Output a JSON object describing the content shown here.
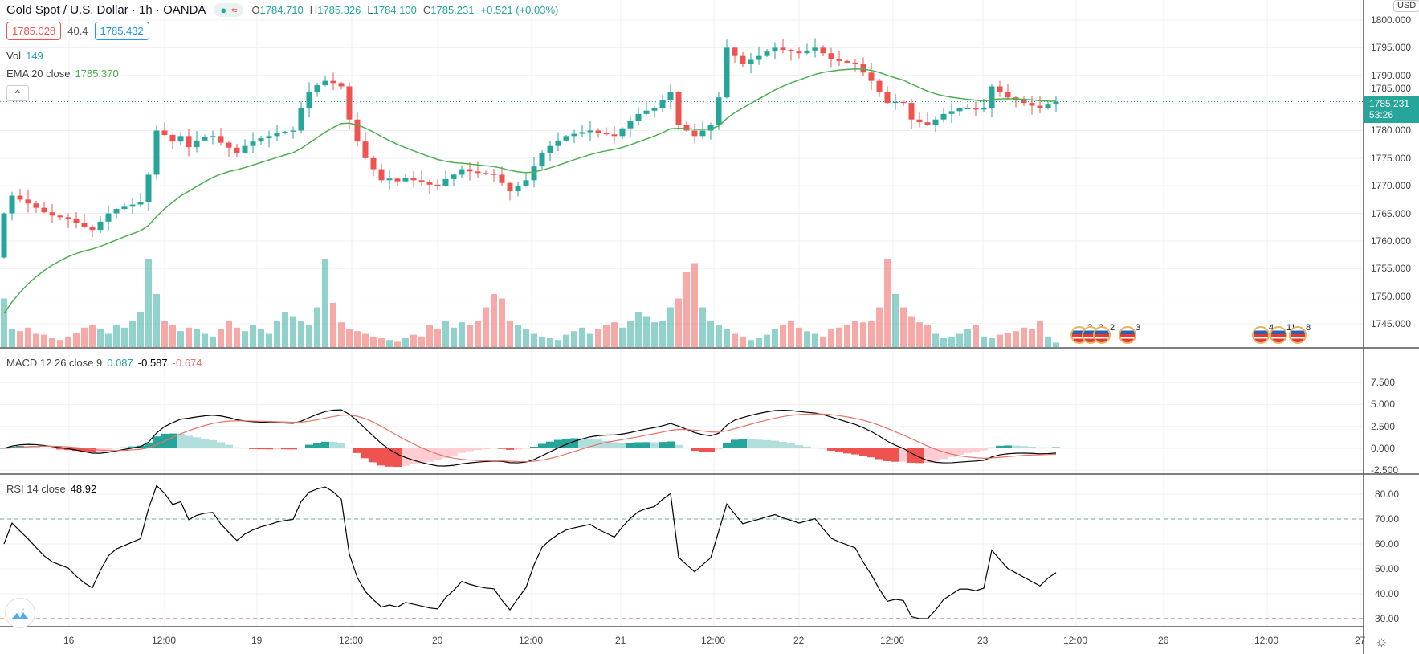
{
  "header": {
    "title": "Gold Spot / U.S. Dollar · 1h · OANDA",
    "status_dot": "●",
    "status_wave": "≈",
    "open_label": "O",
    "open": "1784.710",
    "high_label": "H",
    "high": "1785.326",
    "low_label": "L",
    "low": "1784.100",
    "close_label": "C",
    "close": "1785.231",
    "change": "+0.521 (+0.03%)"
  },
  "trade": {
    "sell": "1785.028",
    "spread": "40.4",
    "buy": "1785.432"
  },
  "legends": {
    "vol_label": "Vol",
    "vol_value": "149",
    "ema_label": "EMA 20 close",
    "ema_value": "1785.370",
    "macd_label": "MACD 12 26 close 9",
    "macd_hist": "0.087",
    "macd_line": "-0.587",
    "macd_signal": "-0.674",
    "rsi_label": "RSI 14 close",
    "rsi_value": "48.92",
    "collapse": "^"
  },
  "price_axis": {
    "currency": "USD",
    "labels": [
      "1800.000",
      "1795.000",
      "1790.000",
      "1785.000",
      "1780.000",
      "1775.000",
      "1770.000",
      "1765.000",
      "1760.000",
      "1755.000",
      "1750.000",
      "1745.000"
    ],
    "current_price": "1785.231",
    "countdown": "53:26"
  },
  "macd_axis": {
    "labels": [
      "7.500",
      "5.000",
      "2.500",
      "0.000",
      "-2.500"
    ]
  },
  "rsi_axis": {
    "labels": [
      "80.00",
      "70.00",
      "60.00",
      "50.00",
      "40.00",
      "30.00"
    ]
  },
  "time_axis": {
    "labels": [
      "16",
      "12:00",
      "19",
      "12:00",
      "20",
      "12:00",
      "21",
      "12:00",
      "22",
      "12:00",
      "23",
      "12:00",
      "26",
      "12:00",
      "27"
    ]
  },
  "events": [
    {
      "label": "2"
    },
    {
      "label": "3"
    },
    {
      "label": "2"
    },
    {
      "label": "3"
    },
    {
      "label": "4"
    },
    {
      "label": "11"
    },
    {
      "label": "8"
    }
  ],
  "colors": {
    "up": "#26a69a",
    "down": "#ef5350",
    "ema": "#4caf50",
    "macd": "#000000",
    "signal": "#e57368",
    "rsi": "#000000"
  },
  "chart_data": {
    "type": "candlestick",
    "timeframe": "1h",
    "closes": [
      1765.0,
      1768.2,
      1767.5,
      1766.8,
      1766.0,
      1765.2,
      1764.6,
      1764.3,
      1764.0,
      1763.2,
      1762.5,
      1762.0,
      1763.5,
      1765.0,
      1765.8,
      1766.2,
      1766.6,
      1767.0,
      1772.0,
      1780.0,
      1779.2,
      1778.0,
      1779.0,
      1777.0,
      1778.2,
      1778.8,
      1779.0,
      1777.8,
      1776.9,
      1776.0,
      1777.2,
      1778.0,
      1778.6,
      1779.0,
      1779.5,
      1779.8,
      1780.0,
      1784.0,
      1787.0,
      1788.2,
      1789.0,
      1788.6,
      1788.0,
      1782.0,
      1778.0,
      1775.0,
      1773.0,
      1771.0,
      1771.3,
      1770.8,
      1771.4,
      1771.0,
      1770.6,
      1770.2,
      1770.0,
      1771.2,
      1772.0,
      1773.0,
      1772.6,
      1772.3,
      1772.1,
      1772.0,
      1770.5,
      1769.0,
      1770.0,
      1771.0,
      1773.5,
      1776.0,
      1777.2,
      1778.2,
      1779.0,
      1779.4,
      1779.7,
      1780.0,
      1779.6,
      1779.3,
      1779.0,
      1780.4,
      1781.8,
      1783.0,
      1783.6,
      1784.0,
      1785.5,
      1787.0,
      1781.0,
      1780.0,
      1779.0,
      1780.0,
      1781.0,
      1786.0,
      1795.0,
      1793.5,
      1792.0,
      1792.8,
      1793.5,
      1794.3,
      1795.0,
      1794.6,
      1794.3,
      1794.0,
      1794.5,
      1795.0,
      1794.0,
      1793.0,
      1792.6,
      1792.3,
      1792.0,
      1790.5,
      1789.0,
      1787.0,
      1785.0,
      1785.2,
      1785.0,
      1782.0,
      1781.5,
      1781.0,
      1782.0,
      1783.0,
      1783.5,
      1784.0,
      1784.0,
      1783.8,
      1784.0,
      1788.0,
      1787.0,
      1786.0,
      1785.5,
      1785.0,
      1784.5,
      1784.0,
      1784.7,
      1785.2
    ],
    "volumes": [
      55,
      20,
      18,
      22,
      15,
      14,
      10,
      8,
      12,
      16,
      22,
      25,
      20,
      15,
      25,
      22,
      30,
      40,
      100,
      60,
      30,
      25,
      18,
      22,
      20,
      15,
      12,
      20,
      30,
      22,
      18,
      25,
      20,
      15,
      30,
      40,
      35,
      30,
      25,
      45,
      100,
      50,
      28,
      20,
      18,
      15,
      12,
      10,
      8,
      6,
      10,
      14,
      12,
      25,
      20,
      30,
      22,
      28,
      25,
      30,
      45,
      60,
      55,
      30,
      25,
      20,
      15,
      12,
      10,
      8,
      14,
      18,
      22,
      15,
      20,
      25,
      28,
      22,
      30,
      40,
      35,
      28,
      30,
      45,
      55,
      85,
      95,
      45,
      30,
      25,
      20,
      15,
      12,
      8,
      10,
      14,
      20,
      25,
      30,
      22,
      18,
      15,
      12,
      20,
      22,
      25,
      30,
      28,
      30,
      45,
      100,
      60,
      45,
      35,
      28,
      25,
      15,
      10,
      12,
      15,
      20,
      25,
      12,
      10,
      14,
      16,
      18,
      22,
      20,
      30,
      12,
      5
    ]
  }
}
